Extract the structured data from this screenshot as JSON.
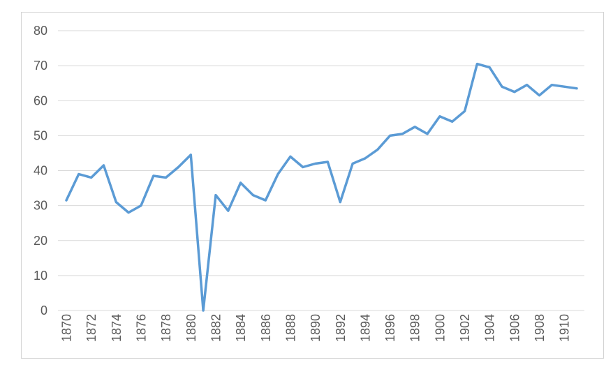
{
  "style": {
    "background": "#FFFFFF",
    "frame_border": "#D4D4D4",
    "gridline_color": "#D9D9D9",
    "axis_text_color": "#595959",
    "line_color": "#5B9BD5"
  },
  "chart_data": {
    "type": "line",
    "title": "",
    "categories": [
      1870,
      1871,
      1872,
      1873,
      1874,
      1875,
      1876,
      1877,
      1878,
      1879,
      1880,
      1881,
      1882,
      1883,
      1884,
      1885,
      1886,
      1887,
      1888,
      1889,
      1890,
      1891,
      1892,
      1893,
      1894,
      1895,
      1896,
      1897,
      1898,
      1899,
      1900,
      1901,
      1902,
      1903,
      1904,
      1905,
      1906,
      1907,
      1908,
      1909,
      1910,
      1911
    ],
    "values": [
      31.5,
      39,
      38,
      41.5,
      31,
      28,
      30,
      38.5,
      38,
      41,
      44.5,
      0,
      33,
      28.5,
      36.5,
      33,
      31.5,
      39,
      44,
      41,
      42,
      42.5,
      31,
      42,
      43.5,
      46,
      50,
      50.5,
      52.5,
      50.5,
      55.5,
      54,
      57,
      70.5,
      69.5,
      64,
      62.5,
      64.5,
      61.5,
      64.5,
      64,
      63.5
    ],
    "x_tick_labels": [
      "1870",
      "1872",
      "1874",
      "1876",
      "1878",
      "1880",
      "1882",
      "1884",
      "1886",
      "1888",
      "1890",
      "1892",
      "1894",
      "1896",
      "1898",
      "1900",
      "1902",
      "1904",
      "1906",
      "1908",
      "1910"
    ],
    "y_tick_labels": [
      "0",
      "10",
      "20",
      "30",
      "40",
      "50",
      "60",
      "70",
      "80"
    ],
    "ylim": [
      0,
      80
    ],
    "y_tick_interval": 10,
    "x_tick_interval": 2,
    "grid": true,
    "legend": "none",
    "x_tick_rotation_deg": -90
  }
}
